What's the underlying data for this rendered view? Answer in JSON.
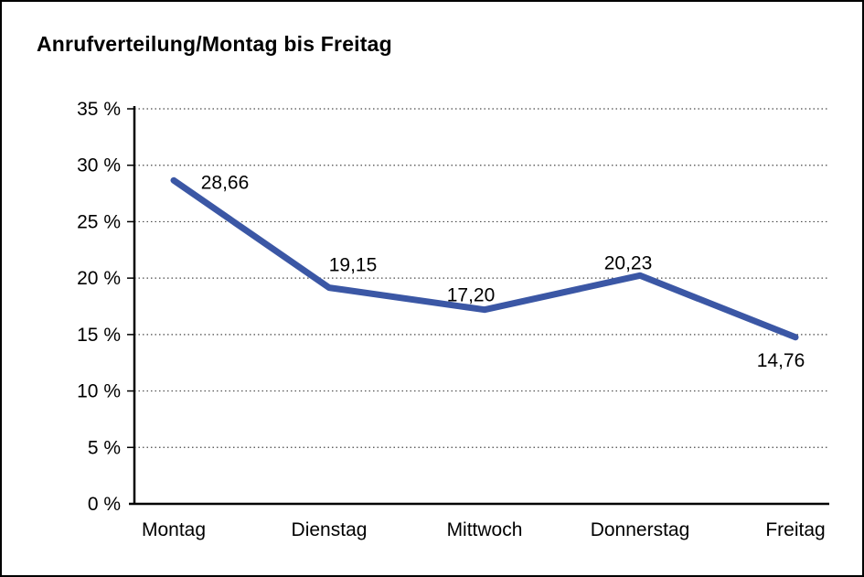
{
  "chart_data": {
    "type": "line",
    "title": "Anrufverteilung/Montag bis Freitag",
    "categories": [
      "Montag",
      "Dienstag",
      "Mittwoch",
      "Donnerstag",
      "Freitag"
    ],
    "values": [
      28.66,
      19.15,
      17.2,
      20.23,
      14.76
    ],
    "value_labels": [
      "28,66",
      "19,15",
      "17,20",
      "20,23",
      "14,76"
    ],
    "xlabel": "",
    "ylabel": "",
    "ylim": [
      0,
      35
    ],
    "ytick_step": 5,
    "ytick_labels": [
      "0 %",
      "5 %",
      "10 %",
      "15 %",
      "20 %",
      "25 %",
      "30 %",
      "35 %"
    ],
    "grid": "dotted-horizontal",
    "legend": "none",
    "colors": {
      "line": "#3B57A5",
      "axis": "#000000",
      "gridline": "#4a4a4a",
      "text": "#000000",
      "background": "#ffffff",
      "frame_border": "#000000"
    }
  }
}
